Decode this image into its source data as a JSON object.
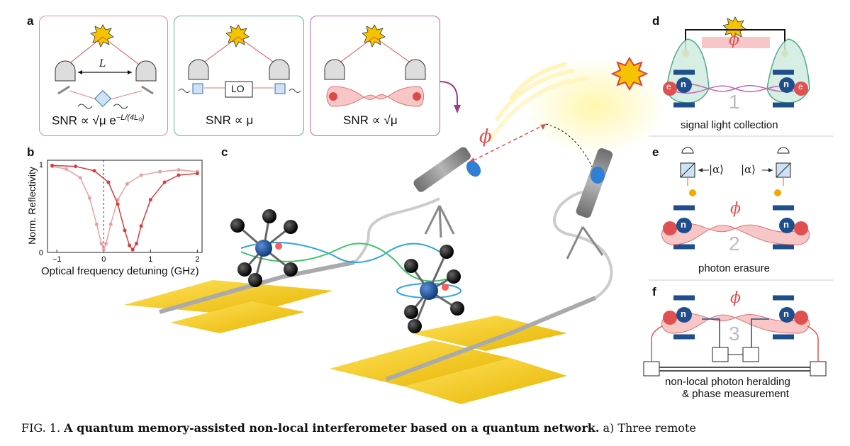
{
  "panels": {
    "a": {
      "letter": "a",
      "distance_label": "L",
      "lo_label": "LO",
      "snr1": "SNR ∝ √μ e",
      "snr1_exp": "−L/(4L₀)",
      "snr2": "SNR ∝ μ",
      "snr3": "SNR ∝ √μ"
    },
    "b": {
      "letter": "b",
      "ylabel": "Norm. Reflectivity",
      "xlabel": "Optical frequency detuning (GHz)",
      "xticks": [
        "−1",
        "0",
        "1",
        "2"
      ],
      "yticks": [
        "1",
        "0"
      ]
    },
    "c": {
      "letter": "c",
      "phase_label": "ϕ"
    },
    "d": {
      "letter": "d",
      "phase_label": "ϕ",
      "number": "1",
      "caption": "signal light collection"
    },
    "e": {
      "letter": "e",
      "phase_label": "ϕ",
      "number": "2",
      "caption": "photon erasure",
      "alpha_left": "|α⟩",
      "alpha_right": "|α⟩"
    },
    "f": {
      "letter": "f",
      "phase_label": "ϕ",
      "number": "3",
      "caption_line1": "non-local photon heralding",
      "caption_line2": "& phase measurement"
    }
  },
  "spin_labels": {
    "electron": "e",
    "nucleus": "n"
  },
  "figure_caption": {
    "prefix": "FIG. 1.",
    "title": "A quantum memory-assisted non-local interferometer based on a quantum network.",
    "continuation": "a) Three remote"
  },
  "chart_data": {
    "type": "line",
    "title": "",
    "xlabel": "Optical frequency detuning (GHz)",
    "ylabel": "Norm. Reflectivity",
    "xlim": [
      -1.2,
      2.1
    ],
    "ylim": [
      0,
      1.05
    ],
    "series": [
      {
        "color": "#e8a0a0",
        "x": [
          -1.1,
          -0.8,
          -0.5,
          -0.3,
          -0.15,
          -0.05,
          0,
          0.05,
          0.15,
          0.3,
          0.5,
          0.8,
          1.2,
          1.6,
          2.0
        ],
        "y": [
          0.98,
          0.95,
          0.85,
          0.62,
          0.32,
          0.1,
          0.03,
          0.1,
          0.32,
          0.6,
          0.78,
          0.88,
          0.92,
          0.94,
          0.92
        ]
      },
      {
        "color": "#d83c3c",
        "x": [
          -1.1,
          -0.6,
          -0.2,
          0.1,
          0.3,
          0.45,
          0.55,
          0.62,
          0.7,
          0.8,
          1.0,
          1.3,
          1.6,
          2.0
        ],
        "y": [
          0.99,
          0.98,
          0.93,
          0.8,
          0.55,
          0.25,
          0.08,
          0.03,
          0.1,
          0.3,
          0.6,
          0.8,
          0.88,
          0.9
        ]
      }
    ]
  },
  "colors": {
    "red": "#d83c3c",
    "green": "#2c9b6e",
    "purple": "#a0398e",
    "navy": "#1f4e8c",
    "gold": "#f5c400"
  }
}
